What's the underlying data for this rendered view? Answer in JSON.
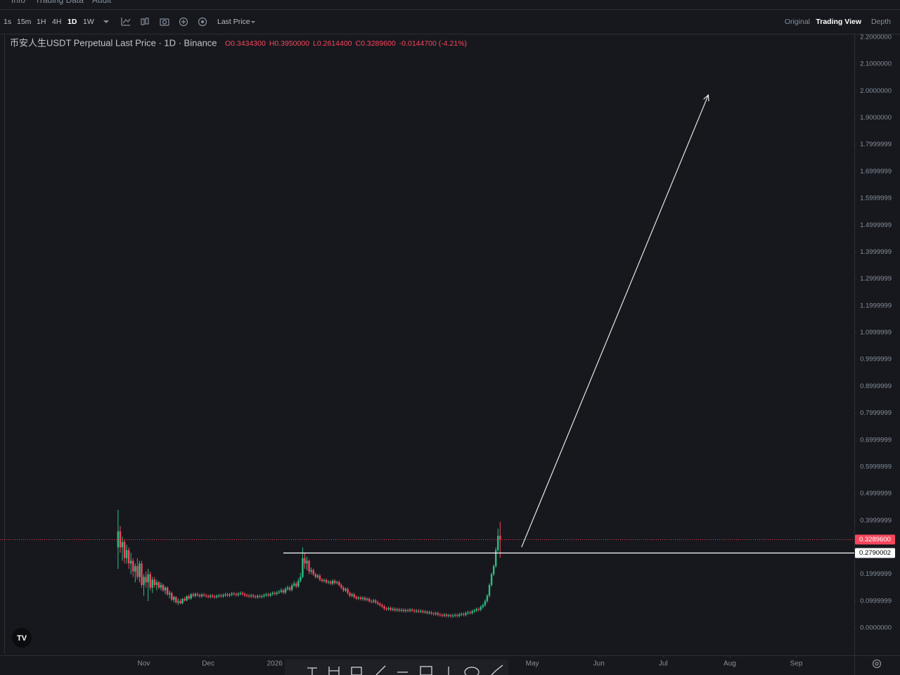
{
  "nav": [
    "Info",
    "Trading Data",
    "Audit"
  ],
  "toolbar": {
    "intervals": [
      "1s",
      "15m",
      "1H",
      "4H",
      "1D",
      "1W"
    ],
    "selected_interval": 4,
    "price_type": "Last Price",
    "views": [
      "Original",
      "Trading View",
      "Depth"
    ],
    "selected_view": 1
  },
  "chart_data": {
    "type": "candlestick",
    "title": "币安人生USDT Perpetual Last Price · 1D · Binance",
    "ohlc_legend": [
      "O0.3434300",
      "H0.3950000",
      "L0.2614400",
      "C0.3289600",
      "-0.0144700 (-4.21%)"
    ],
    "up_color": "#2ebd85",
    "down_color": "#f6465d",
    "ohlc": [
      [
        0.3,
        0.44,
        0.22,
        0.36
      ],
      [
        0.36,
        0.38,
        0.28,
        0.3
      ],
      [
        0.3,
        0.34,
        0.25,
        0.32
      ],
      [
        0.32,
        0.33,
        0.24,
        0.26
      ],
      [
        0.26,
        0.31,
        0.24,
        0.29
      ],
      [
        0.29,
        0.3,
        0.22,
        0.24
      ],
      [
        0.24,
        0.28,
        0.2,
        0.25
      ],
      [
        0.25,
        0.26,
        0.19,
        0.21
      ],
      [
        0.21,
        0.24,
        0.17,
        0.23
      ],
      [
        0.23,
        0.26,
        0.18,
        0.19
      ],
      [
        0.19,
        0.25,
        0.17,
        0.24
      ],
      [
        0.24,
        0.25,
        0.15,
        0.16
      ],
      [
        0.16,
        0.2,
        0.12,
        0.19
      ],
      [
        0.19,
        0.21,
        0.15,
        0.17
      ],
      [
        0.17,
        0.22,
        0.1,
        0.2
      ],
      [
        0.2,
        0.21,
        0.14,
        0.15
      ],
      [
        0.15,
        0.19,
        0.13,
        0.18
      ],
      [
        0.18,
        0.19,
        0.15,
        0.16
      ],
      [
        0.16,
        0.18,
        0.14,
        0.17
      ],
      [
        0.17,
        0.175,
        0.145,
        0.15
      ],
      [
        0.15,
        0.17,
        0.14,
        0.16
      ],
      [
        0.16,
        0.165,
        0.135,
        0.14
      ],
      [
        0.14,
        0.155,
        0.125,
        0.15
      ],
      [
        0.15,
        0.155,
        0.12,
        0.125
      ],
      [
        0.125,
        0.14,
        0.11,
        0.13
      ],
      [
        0.13,
        0.135,
        0.1,
        0.105
      ],
      [
        0.105,
        0.12,
        0.095,
        0.115
      ],
      [
        0.115,
        0.118,
        0.09,
        0.095
      ],
      [
        0.095,
        0.11,
        0.085,
        0.1
      ],
      [
        0.1,
        0.108,
        0.088,
        0.092
      ],
      [
        0.092,
        0.112,
        0.088,
        0.108
      ],
      [
        0.108,
        0.115,
        0.098,
        0.102
      ],
      [
        0.102,
        0.122,
        0.1,
        0.118
      ],
      [
        0.118,
        0.125,
        0.105,
        0.11
      ],
      [
        0.11,
        0.13,
        0.105,
        0.125
      ],
      [
        0.125,
        0.131,
        0.114,
        0.12
      ],
      [
        0.12,
        0.132,
        0.114,
        0.126
      ],
      [
        0.126,
        0.132,
        0.116,
        0.122
      ],
      [
        0.122,
        0.128,
        0.112,
        0.118
      ],
      [
        0.118,
        0.13,
        0.112,
        0.124
      ],
      [
        0.124,
        0.13,
        0.115,
        0.121
      ],
      [
        0.121,
        0.127,
        0.113,
        0.119
      ],
      [
        0.119,
        0.125,
        0.11,
        0.116
      ],
      [
        0.116,
        0.126,
        0.11,
        0.12
      ],
      [
        0.12,
        0.126,
        0.111,
        0.117
      ],
      [
        0.117,
        0.123,
        0.109,
        0.115
      ],
      [
        0.115,
        0.125,
        0.109,
        0.119
      ],
      [
        0.119,
        0.127,
        0.113,
        0.121
      ],
      [
        0.121,
        0.127,
        0.112,
        0.118
      ],
      [
        0.118,
        0.128,
        0.112,
        0.122
      ],
      [
        0.122,
        0.131,
        0.116,
        0.125
      ],
      [
        0.125,
        0.131,
        0.115,
        0.121
      ],
      [
        0.121,
        0.13,
        0.115,
        0.124
      ],
      [
        0.124,
        0.134,
        0.118,
        0.128
      ],
      [
        0.128,
        0.134,
        0.12,
        0.126
      ],
      [
        0.126,
        0.132,
        0.117,
        0.123
      ],
      [
        0.123,
        0.133,
        0.117,
        0.127
      ],
      [
        0.127,
        0.136,
        0.121,
        0.13
      ],
      [
        0.13,
        0.136,
        0.12,
        0.126
      ],
      [
        0.126,
        0.132,
        0.116,
        0.122
      ],
      [
        0.122,
        0.128,
        0.114,
        0.12
      ],
      [
        0.12,
        0.126,
        0.112,
        0.118
      ],
      [
        0.118,
        0.127,
        0.112,
        0.121
      ],
      [
        0.121,
        0.127,
        0.111,
        0.117
      ],
      [
        0.117,
        0.123,
        0.109,
        0.115
      ],
      [
        0.115,
        0.125,
        0.109,
        0.119
      ],
      [
        0.119,
        0.125,
        0.11,
        0.116
      ],
      [
        0.116,
        0.124,
        0.11,
        0.118
      ],
      [
        0.118,
        0.128,
        0.112,
        0.122
      ],
      [
        0.122,
        0.131,
        0.116,
        0.125
      ],
      [
        0.125,
        0.131,
        0.115,
        0.121
      ],
      [
        0.121,
        0.132,
        0.115,
        0.126
      ],
      [
        0.126,
        0.136,
        0.12,
        0.13
      ],
      [
        0.13,
        0.136,
        0.121,
        0.127
      ],
      [
        0.127,
        0.138,
        0.121,
        0.132
      ],
      [
        0.132,
        0.141,
        0.126,
        0.135
      ],
      [
        0.135,
        0.148,
        0.13,
        0.14
      ],
      [
        0.14,
        0.146,
        0.126,
        0.132
      ],
      [
        0.132,
        0.152,
        0.126,
        0.145
      ],
      [
        0.145,
        0.158,
        0.139,
        0.15
      ],
      [
        0.15,
        0.156,
        0.136,
        0.142
      ],
      [
        0.142,
        0.166,
        0.136,
        0.158
      ],
      [
        0.158,
        0.175,
        0.152,
        0.165
      ],
      [
        0.165,
        0.172,
        0.148,
        0.155
      ],
      [
        0.155,
        0.185,
        0.149,
        0.175
      ],
      [
        0.175,
        0.205,
        0.169,
        0.19
      ],
      [
        0.19,
        0.3,
        0.185,
        0.26
      ],
      [
        0.26,
        0.28,
        0.22,
        0.24
      ],
      [
        0.24,
        0.265,
        0.215,
        0.25
      ],
      [
        0.25,
        0.255,
        0.2,
        0.21
      ],
      [
        0.21,
        0.225,
        0.2,
        0.215
      ],
      [
        0.215,
        0.221,
        0.194,
        0.2
      ],
      [
        0.2,
        0.206,
        0.184,
        0.19
      ],
      [
        0.19,
        0.201,
        0.184,
        0.195
      ],
      [
        0.195,
        0.201,
        0.174,
        0.18
      ],
      [
        0.18,
        0.186,
        0.169,
        0.175
      ],
      [
        0.175,
        0.184,
        0.169,
        0.178
      ],
      [
        0.178,
        0.184,
        0.164,
        0.17
      ],
      [
        0.17,
        0.178,
        0.164,
        0.172
      ],
      [
        0.172,
        0.178,
        0.159,
        0.165
      ],
      [
        0.165,
        0.181,
        0.159,
        0.175
      ],
      [
        0.175,
        0.181,
        0.162,
        0.168
      ],
      [
        0.168,
        0.176,
        0.162,
        0.17
      ],
      [
        0.17,
        0.176,
        0.154,
        0.16
      ],
      [
        0.16,
        0.166,
        0.144,
        0.15
      ],
      [
        0.15,
        0.156,
        0.134,
        0.14
      ],
      [
        0.14,
        0.151,
        0.134,
        0.145
      ],
      [
        0.145,
        0.151,
        0.124,
        0.13
      ],
      [
        0.13,
        0.136,
        0.114,
        0.12
      ],
      [
        0.12,
        0.131,
        0.114,
        0.125
      ],
      [
        0.125,
        0.131,
        0.109,
        0.115
      ],
      [
        0.115,
        0.121,
        0.104,
        0.11
      ],
      [
        0.11,
        0.119,
        0.104,
        0.113
      ],
      [
        0.113,
        0.119,
        0.102,
        0.108
      ],
      [
        0.108,
        0.118,
        0.102,
        0.112
      ],
      [
        0.112,
        0.118,
        0.099,
        0.105
      ],
      [
        0.105,
        0.114,
        0.099,
        0.108
      ],
      [
        0.108,
        0.114,
        0.094,
        0.1
      ],
      [
        0.1,
        0.106,
        0.092,
        0.098
      ],
      [
        0.098,
        0.108,
        0.092,
        0.102
      ],
      [
        0.102,
        0.108,
        0.089,
        0.095
      ],
      [
        0.095,
        0.101,
        0.084,
        0.09
      ],
      [
        0.09,
        0.096,
        0.079,
        0.085
      ],
      [
        0.085,
        0.091,
        0.074,
        0.08
      ],
      [
        0.08,
        0.086,
        0.066,
        0.072
      ],
      [
        0.072,
        0.078,
        0.064,
        0.07
      ],
      [
        0.07,
        0.08,
        0.064,
        0.074
      ],
      [
        0.074,
        0.08,
        0.062,
        0.068
      ],
      [
        0.068,
        0.077,
        0.062,
        0.071
      ],
      [
        0.071,
        0.077,
        0.06,
        0.066
      ],
      [
        0.066,
        0.075,
        0.06,
        0.069
      ],
      [
        0.069,
        0.075,
        0.059,
        0.065
      ],
      [
        0.065,
        0.073,
        0.059,
        0.067
      ],
      [
        0.067,
        0.073,
        0.057,
        0.063
      ],
      [
        0.063,
        0.072,
        0.057,
        0.066
      ],
      [
        0.066,
        0.072,
        0.058,
        0.064
      ],
      [
        0.064,
        0.074,
        0.058,
        0.068
      ],
      [
        0.068,
        0.074,
        0.059,
        0.065
      ],
      [
        0.065,
        0.071,
        0.056,
        0.062
      ],
      [
        0.062,
        0.07,
        0.056,
        0.064
      ],
      [
        0.064,
        0.07,
        0.055,
        0.061
      ],
      [
        0.061,
        0.069,
        0.055,
        0.063
      ],
      [
        0.063,
        0.069,
        0.053,
        0.059
      ],
      [
        0.059,
        0.066,
        0.053,
        0.06
      ],
      [
        0.06,
        0.066,
        0.05,
        0.056
      ],
      [
        0.056,
        0.064,
        0.05,
        0.058
      ],
      [
        0.058,
        0.064,
        0.048,
        0.054
      ],
      [
        0.054,
        0.06,
        0.046,
        0.052
      ],
      [
        0.052,
        0.061,
        0.046,
        0.055
      ],
      [
        0.055,
        0.061,
        0.044,
        0.05
      ],
      [
        0.05,
        0.056,
        0.042,
        0.048
      ],
      [
        0.048,
        0.054,
        0.04,
        0.046
      ],
      [
        0.046,
        0.055,
        0.04,
        0.049
      ],
      [
        0.049,
        0.055,
        0.039,
        0.045
      ],
      [
        0.045,
        0.053,
        0.039,
        0.047
      ],
      [
        0.047,
        0.053,
        0.038,
        0.044
      ],
      [
        0.044,
        0.052,
        0.038,
        0.046
      ],
      [
        0.046,
        0.054,
        0.04,
        0.048
      ],
      [
        0.048,
        0.054,
        0.039,
        0.045
      ],
      [
        0.045,
        0.056,
        0.039,
        0.05
      ],
      [
        0.05,
        0.058,
        0.044,
        0.052
      ],
      [
        0.052,
        0.058,
        0.043,
        0.049
      ],
      [
        0.049,
        0.061,
        0.043,
        0.055
      ],
      [
        0.055,
        0.064,
        0.049,
        0.058
      ],
      [
        0.058,
        0.064,
        0.05,
        0.056
      ],
      [
        0.056,
        0.068,
        0.05,
        0.062
      ],
      [
        0.062,
        0.071,
        0.056,
        0.065
      ],
      [
        0.065,
        0.076,
        0.059,
        0.07
      ],
      [
        0.07,
        0.076,
        0.062,
        0.068
      ],
      [
        0.068,
        0.084,
        0.062,
        0.078
      ],
      [
        0.078,
        0.091,
        0.072,
        0.085
      ],
      [
        0.085,
        0.106,
        0.079,
        0.1
      ],
      [
        0.1,
        0.126,
        0.094,
        0.12
      ],
      [
        0.12,
        0.166,
        0.114,
        0.16
      ],
      [
        0.16,
        0.206,
        0.154,
        0.2
      ],
      [
        0.2,
        0.236,
        0.194,
        0.23
      ],
      [
        0.23,
        0.3,
        0.224,
        0.29
      ],
      [
        0.29,
        0.37,
        0.284,
        0.343
      ],
      [
        0.34343,
        0.395,
        0.26144,
        0.32896
      ]
    ],
    "xlim": [
      -55,
      343
    ],
    "xticks": [
      {
        "value": 12,
        "label": "Nov"
      },
      {
        "value": 42,
        "label": "Dec"
      },
      {
        "value": 73,
        "label": "2026"
      },
      {
        "value": 193,
        "label": "May"
      },
      {
        "value": 224,
        "label": "Jun"
      },
      {
        "value": 254,
        "label": "Jul"
      },
      {
        "value": 285,
        "label": "Aug"
      },
      {
        "value": 316,
        "label": "Sep"
      }
    ],
    "ylim": [
      -0.102,
      2.213
    ],
    "yticks": [
      {
        "value": 2.2,
        "label": "2.2000000"
      },
      {
        "value": 2.1,
        "label": "2.1000000"
      },
      {
        "value": 2.0,
        "label": "2.0000000"
      },
      {
        "value": 1.9,
        "label": "1.9000000"
      },
      {
        "value": 1.7999999,
        "label": "1.7999999"
      },
      {
        "value": 1.6999999,
        "label": "1.6999999"
      },
      {
        "value": 1.5999999,
        "label": "1.5999999"
      },
      {
        "value": 1.4999999,
        "label": "1.4999999"
      },
      {
        "value": 1.3999999,
        "label": "1.3999999"
      },
      {
        "value": 1.2999999,
        "label": "1.2999999"
      },
      {
        "value": 1.1999999,
        "label": "1.1999999"
      },
      {
        "value": 1.0999999,
        "label": "1.0999999"
      },
      {
        "value": 0.9999999,
        "label": "0.9999999"
      },
      {
        "value": 0.8999999,
        "label": "0.8999999"
      },
      {
        "value": 0.7999999,
        "label": "0.7999999"
      },
      {
        "value": 0.6999999,
        "label": "0.6999999"
      },
      {
        "value": 0.5999999,
        "label": "0.5999999"
      },
      {
        "value": 0.4999999,
        "label": "0.4999999"
      },
      {
        "value": 0.3999999,
        "label": "0.3999999"
      },
      {
        "value": 0.1999999,
        "label": "0.1999999"
      },
      {
        "value": 0.0999999,
        "label": "0.0999999"
      },
      {
        "value": 0,
        "label": "0.0000000"
      }
    ],
    "last_price": {
      "value": 0.32896,
      "label": "0.3289600"
    },
    "horizontal_line": {
      "start": 77,
      "value": 0.2790002,
      "label": "0.2790002"
    },
    "arrow": {
      "from": [
        188,
        0.301
      ],
      "to": [
        275,
        1.985
      ]
    }
  }
}
